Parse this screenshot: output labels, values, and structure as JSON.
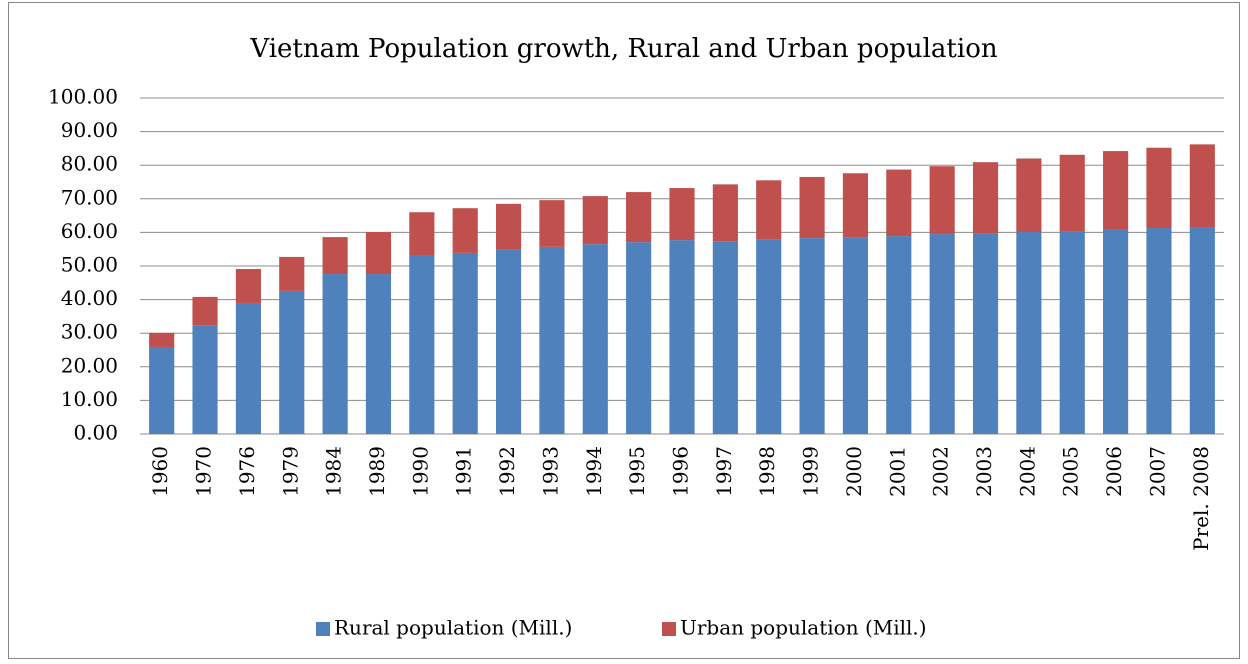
{
  "chart_data": {
    "type": "stacked_bar",
    "title": "Vietnam Population growth, Rural and Urban population",
    "categories": [
      "1960",
      "1970",
      "1976",
      "1979",
      "1984",
      "1989",
      "1990",
      "1991",
      "1992",
      "1993",
      "1994",
      "1995",
      "1996",
      "1997",
      "1998",
      "1999",
      "2000",
      "2001",
      "2002",
      "2003",
      "2004",
      "2005",
      "2006",
      "2007",
      "Prel. 2008"
    ],
    "series": [
      {
        "name": "Rural population (Mill.)",
        "color": "#4f81bd",
        "values": [
          25.9,
          32.4,
          39.0,
          42.6,
          47.6,
          47.6,
          53.0,
          53.9,
          54.8,
          55.7,
          56.5,
          57.1,
          57.7,
          57.4,
          58.0,
          58.3,
          58.6,
          58.9,
          59.5,
          59.8,
          60.1,
          60.4,
          61.0,
          61.3,
          61.6
        ]
      },
      {
        "name": "Urban population (Mill.)",
        "color": "#c0504d",
        "values": [
          4.2,
          8.4,
          10.1,
          10.1,
          11.0,
          12.5,
          13.0,
          13.3,
          13.7,
          13.9,
          14.3,
          14.9,
          15.5,
          16.9,
          17.5,
          18.2,
          19.0,
          19.8,
          20.2,
          21.1,
          21.9,
          22.7,
          23.2,
          23.9,
          24.6
        ]
      }
    ],
    "ylim": [
      0,
      100
    ],
    "yticks": [
      {
        "value": 0,
        "label": "0.00"
      },
      {
        "value": 10,
        "label": "10.00"
      },
      {
        "value": 20,
        "label": "20.00"
      },
      {
        "value": 30,
        "label": "30.00"
      },
      {
        "value": 40,
        "label": "40.00"
      },
      {
        "value": 50,
        "label": "50.00"
      },
      {
        "value": 60,
        "label": "60.00"
      },
      {
        "value": 70,
        "label": "70.00"
      },
      {
        "value": 80,
        "label": "80.00"
      },
      {
        "value": 90,
        "label": "90.00"
      },
      {
        "value": 100,
        "label": "100.00"
      }
    ],
    "grid": true,
    "legend": "bottom"
  }
}
